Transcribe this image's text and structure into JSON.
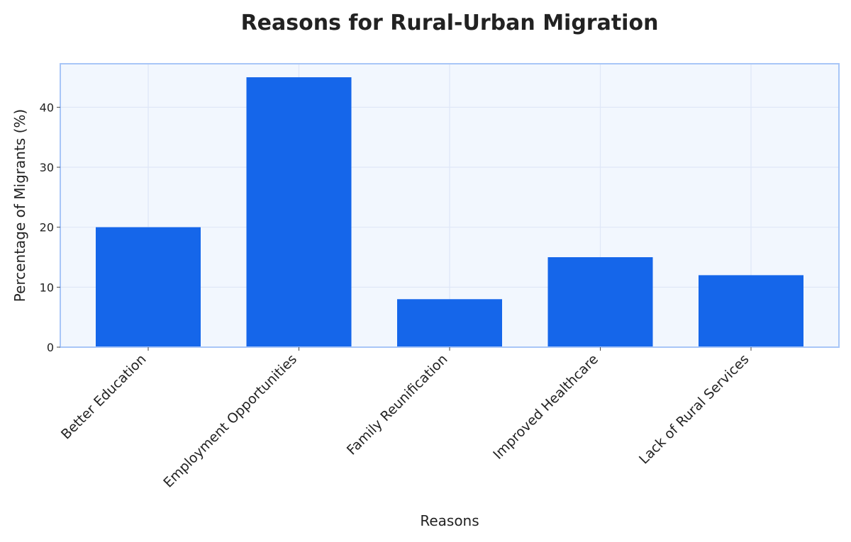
{
  "chart_data": {
    "type": "bar",
    "title": "Reasons for Rural-Urban Migration",
    "xlabel": "Reasons",
    "ylabel": "Percentage of Migrants (%)",
    "categories": [
      "Better Education",
      "Employment Opportunities",
      "Family Reunification",
      "Improved Healthcare",
      "Lack of Rural Services"
    ],
    "values": [
      20,
      45,
      8,
      15,
      12
    ],
    "ylim": [
      0,
      47.25
    ],
    "yticks": [
      0,
      10,
      20,
      30,
      40
    ],
    "grid": true,
    "legend": "none",
    "colors": {
      "bar": "#1566EA",
      "plot_bg": "#F2F7FE",
      "plot_border": "#A8C6F7",
      "grid": "#DFE7F7"
    }
  }
}
